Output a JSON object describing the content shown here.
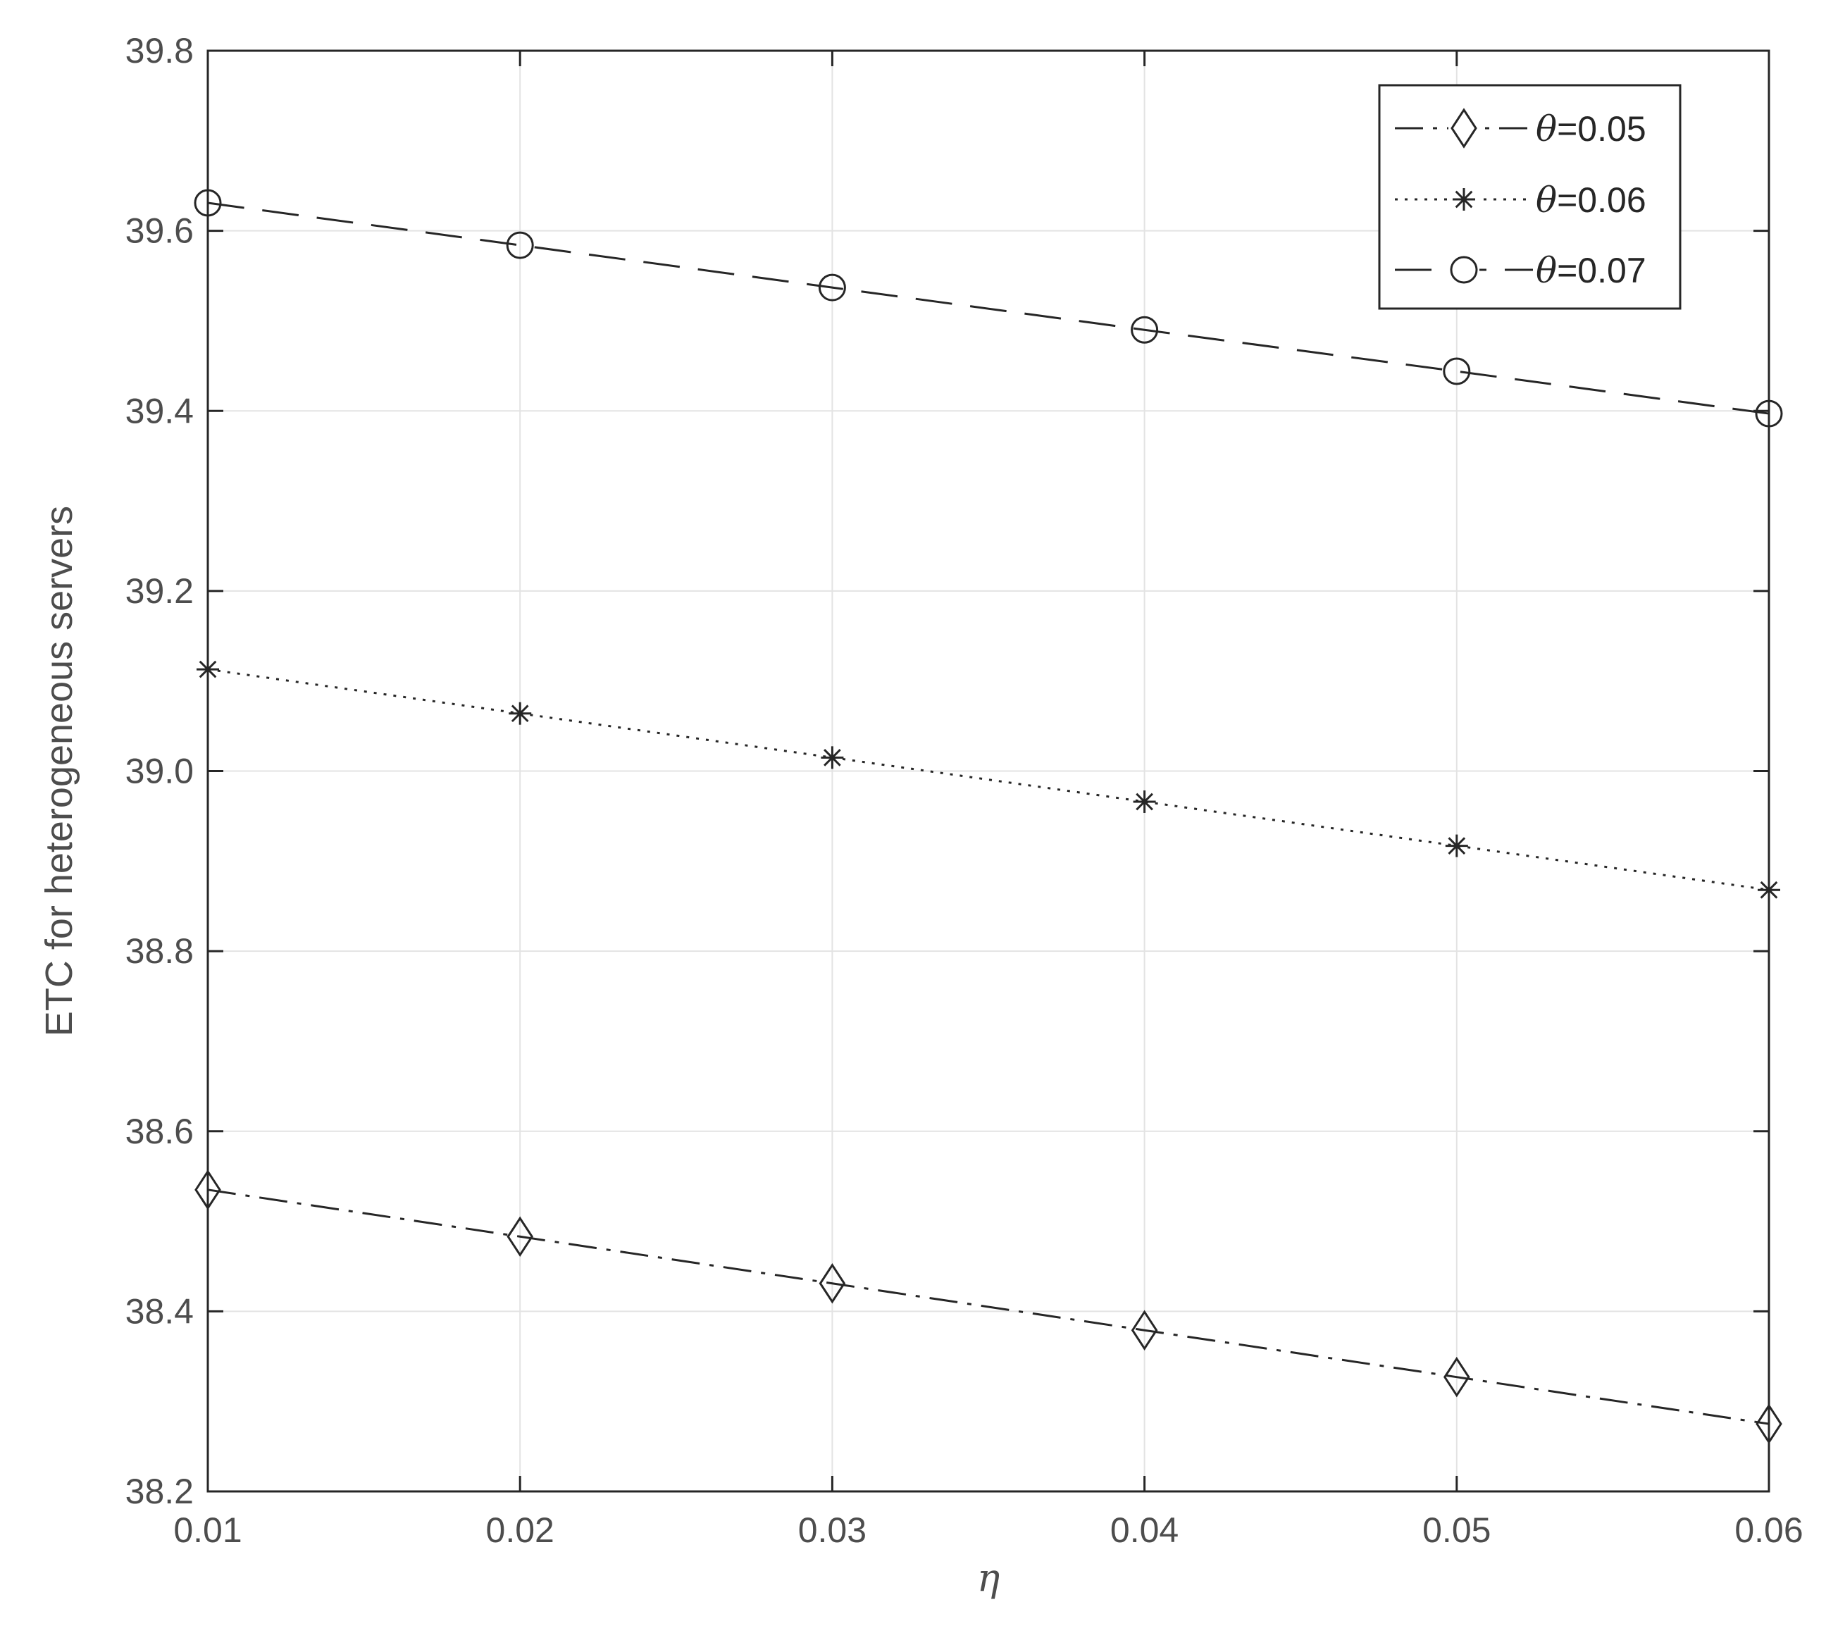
{
  "chart_data": {
    "type": "line",
    "xlabel": "η",
    "ylabel": "ETC for heterogeneous servers",
    "x": [
      0.01,
      0.02,
      0.03,
      0.04,
      0.05,
      0.06
    ],
    "xlim": [
      0.01,
      0.06
    ],
    "ylim": [
      38.2,
      39.8
    ],
    "xticks": [
      "0.01",
      "0.02",
      "0.03",
      "0.04",
      "0.05",
      "0.06"
    ],
    "yticks": [
      "38.2",
      "38.4",
      "38.6",
      "38.8",
      "39.0",
      "39.2",
      "39.4",
      "39.6",
      "39.8"
    ],
    "grid": true,
    "legend_position": "top-right",
    "series": [
      {
        "name_symbol": "θ",
        "name_value": "=0.05",
        "marker": "diamond",
        "line_style": "dash-dot",
        "color": "#262626",
        "values": [
          38.535,
          38.483,
          38.431,
          38.379,
          38.327,
          38.275
        ]
      },
      {
        "name_symbol": "θ",
        "name_value": "=0.06",
        "marker": "asterisk",
        "line_style": "dotted",
        "color": "#262626",
        "values": [
          39.113,
          39.064,
          39.015,
          38.966,
          38.917,
          38.868
        ]
      },
      {
        "name_symbol": "θ",
        "name_value": "=0.07",
        "marker": "circle",
        "line_style": "dashed",
        "color": "#262626",
        "values": [
          39.631,
          39.584,
          39.537,
          39.49,
          39.444,
          39.397
        ]
      }
    ]
  }
}
